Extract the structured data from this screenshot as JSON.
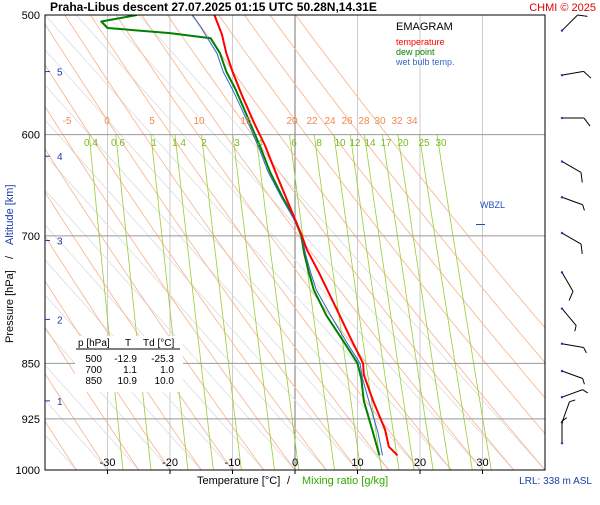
{
  "header": {
    "title": "Praha-Libus   descent   27.07.2025 01:15 UTC   50.28N,14.31E",
    "copyright": "CHMI © 2025"
  },
  "legend": {
    "title": "EMAGRAM",
    "items": [
      {
        "label": "temperature",
        "color": "#ff0000"
      },
      {
        "label": "dew point",
        "color": "#008000"
      },
      {
        "label": "wet bulb temp.",
        "color": "#3366cc"
      }
    ]
  },
  "axes": {
    "x_label_temp": "Temperature [°C]",
    "x_label_sep": "/",
    "x_label_mix": "Mixing ratio [g/kg]",
    "y_label_pressure": "Pressure [hPa]",
    "y_label_sep": "/",
    "y_label_alt": "Altitude [km]"
  },
  "footer": {
    "lrl": "LRL: 338 m ASL"
  },
  "wbzl": "WBZL",
  "table": {
    "headers": [
      "p [hPa]",
      "T",
      "Td [°C]"
    ],
    "rows": [
      [
        "500",
        "-12.9",
        "-25.3"
      ],
      [
        "700",
        "1.1",
        "1.0"
      ],
      [
        "850",
        "10.9",
        "10.0"
      ]
    ]
  },
  "chart_data": {
    "type": "line",
    "title": "EMAGRAM",
    "xlabel": "Temperature [°C]",
    "ylabel": "Pressure [hPa]",
    "xlim": [
      -40,
      40
    ],
    "ylim": [
      1000,
      500
    ],
    "y_scale": "log",
    "x_ticks": [
      -30,
      -20,
      -10,
      0,
      10,
      20,
      30
    ],
    "pressure_ticks": [
      500,
      600,
      700,
      850,
      925,
      1000
    ],
    "altitude_ticks": [
      {
        "label": "1",
        "p": 900
      },
      {
        "label": "2",
        "p": 795
      },
      {
        "label": "3",
        "p": 705
      },
      {
        "label": "4",
        "p": 620
      },
      {
        "label": "5",
        "p": 545
      }
    ],
    "dry_adiabat_labels": [
      "-5",
      "0",
      "5",
      "10",
      "15",
      "20",
      "22",
      "24",
      "26",
      "28",
      "30",
      "32",
      "34"
    ],
    "mixing_ratio_labels": [
      "0.4",
      "0.6",
      "1",
      "1.4",
      "2",
      "3",
      "4",
      "6",
      "8",
      "10",
      "12",
      "14",
      "17",
      "20",
      "25",
      "30"
    ],
    "mixing_ratio_values": [
      0.4,
      0.6,
      1,
      1.4,
      2,
      3,
      4,
      6,
      8,
      10,
      12,
      14,
      17,
      20,
      25,
      30
    ],
    "dry_adiabat_theta_c": [
      -5,
      0,
      5,
      10,
      15,
      20,
      22,
      24,
      26,
      28,
      30,
      32,
      34
    ],
    "series": [
      {
        "name": "temperature",
        "color": "#ff0000",
        "points": [
          [
            16.4,
            978
          ],
          [
            15.0,
            965
          ],
          [
            14.4,
            940
          ],
          [
            12.5,
            900
          ],
          [
            11.0,
            865
          ],
          [
            10.9,
            850
          ],
          [
            9.0,
            820
          ],
          [
            6.5,
            780
          ],
          [
            3.8,
            740
          ],
          [
            1.9,
            715
          ],
          [
            1.1,
            700
          ],
          [
            -0.8,
            670
          ],
          [
            -2.8,
            640
          ],
          [
            -4.8,
            610
          ],
          [
            -6.5,
            590
          ],
          [
            -8.5,
            565
          ],
          [
            -10.0,
            545
          ],
          [
            -11.0,
            530
          ],
          [
            -11.7,
            515
          ],
          [
            -12.9,
            500
          ]
        ]
      },
      {
        "name": "dew point",
        "color": "#008000",
        "points": [
          [
            13.5,
            978
          ],
          [
            12.5,
            945
          ],
          [
            11.0,
            900
          ],
          [
            10.6,
            870
          ],
          [
            10.0,
            850
          ],
          [
            8.0,
            825
          ],
          [
            5.0,
            790
          ],
          [
            3.0,
            760
          ],
          [
            2.2,
            740
          ],
          [
            1.5,
            720
          ],
          [
            1.0,
            700
          ],
          [
            -0.2,
            680
          ],
          [
            -2.0,
            660
          ],
          [
            -4.0,
            635
          ],
          [
            -5.5,
            612
          ],
          [
            -7.0,
            592
          ],
          [
            -8.3,
            575
          ],
          [
            -9.5,
            560
          ],
          [
            -11.0,
            545
          ],
          [
            -12.0,
            530
          ],
          [
            -13.5,
            518
          ],
          [
            -20.0,
            514
          ],
          [
            -30.0,
            510
          ],
          [
            -31.0,
            505
          ],
          [
            -25.3,
            500
          ]
        ]
      },
      {
        "name": "wet bulb temp.",
        "color": "#3366cc",
        "points": [
          [
            14.0,
            978
          ],
          [
            13.3,
            945
          ],
          [
            11.8,
            900
          ],
          [
            10.8,
            870
          ],
          [
            10.4,
            850
          ],
          [
            8.4,
            825
          ],
          [
            5.7,
            790
          ],
          [
            3.4,
            760
          ],
          [
            2.5,
            740
          ],
          [
            1.7,
            720
          ],
          [
            1.1,
            700
          ],
          [
            -0.4,
            680
          ],
          [
            -2.2,
            660
          ],
          [
            -4.3,
            635
          ],
          [
            -5.8,
            612
          ],
          [
            -7.3,
            592
          ],
          [
            -8.7,
            575
          ],
          [
            -10.0,
            560
          ],
          [
            -11.5,
            545
          ],
          [
            -12.5,
            530
          ],
          [
            -14.0,
            518
          ],
          [
            -15.0,
            510
          ],
          [
            -16.0,
            503
          ],
          [
            -16.5,
            500
          ]
        ]
      }
    ],
    "wbzl_p": 688,
    "wind_barbs": [
      {
        "p": 512,
        "dir": 225,
        "spd": 10
      },
      {
        "p": 548,
        "dir": 260,
        "spd": 10
      },
      {
        "p": 585,
        "dir": 270,
        "spd": 10
      },
      {
        "p": 625,
        "dir": 300,
        "spd": 10
      },
      {
        "p": 660,
        "dir": 290,
        "spd": 5
      },
      {
        "p": 697,
        "dir": 300,
        "spd": 10
      },
      {
        "p": 740,
        "dir": 330,
        "spd": 10
      },
      {
        "p": 782,
        "dir": 320,
        "spd": 5
      },
      {
        "p": 825,
        "dir": 280,
        "spd": 5
      },
      {
        "p": 860,
        "dir": 290,
        "spd": 5
      },
      {
        "p": 895,
        "dir": 250,
        "spd": 5
      },
      {
        "p": 930,
        "dir": 200,
        "spd": 5
      },
      {
        "p": 960,
        "dir": 180,
        "spd": 5
      }
    ]
  }
}
